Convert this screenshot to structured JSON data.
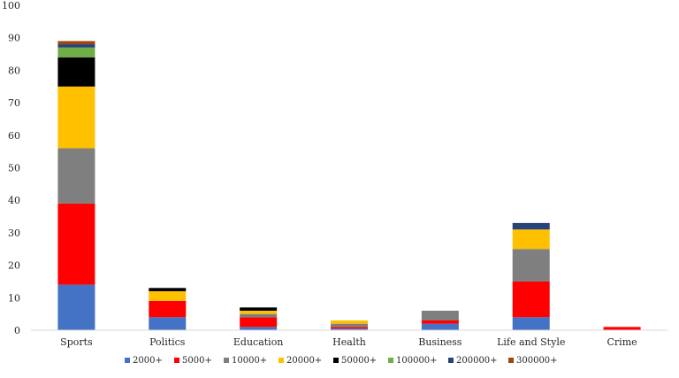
{
  "chart_data": {
    "type": "bar",
    "stacked": true,
    "title": "",
    "xlabel": "",
    "ylabel": "",
    "ylim": [
      0,
      100
    ],
    "yticks": [
      0,
      10,
      20,
      30,
      40,
      50,
      60,
      70,
      80,
      90,
      100
    ],
    "grid": false,
    "legend_position": "bottom",
    "categories": [
      "Sports",
      "Politics",
      "Education",
      "Health",
      "Business",
      "Life and Style",
      "Crime"
    ],
    "series": [
      {
        "name": "2000+",
        "color": "#4472C4",
        "values": [
          14,
          4,
          1,
          0.5,
          2,
          4,
          0
        ]
      },
      {
        "name": "5000+",
        "color": "#FF0000",
        "values": [
          25,
          5,
          3,
          0.5,
          1,
          11,
          1
        ]
      },
      {
        "name": "10000+",
        "color": "#7F7F7F",
        "values": [
          17,
          0,
          1,
          1,
          3,
          10,
          0
        ]
      },
      {
        "name": "20000+",
        "color": "#FFC000",
        "values": [
          19,
          3,
          1,
          1,
          0,
          6,
          0
        ]
      },
      {
        "name": "50000+",
        "color": "#000000",
        "values": [
          9,
          1,
          1,
          0,
          0,
          0,
          0
        ]
      },
      {
        "name": "100000+",
        "color": "#70AD47",
        "values": [
          3,
          0,
          0,
          0,
          0,
          0,
          0
        ]
      },
      {
        "name": "200000+",
        "color": "#264478",
        "values": [
          1,
          0,
          0,
          0,
          0,
          2,
          0
        ]
      },
      {
        "name": "300000+",
        "color": "#9E480E",
        "values": [
          1,
          0,
          0,
          0,
          0,
          0,
          0
        ]
      }
    ]
  }
}
